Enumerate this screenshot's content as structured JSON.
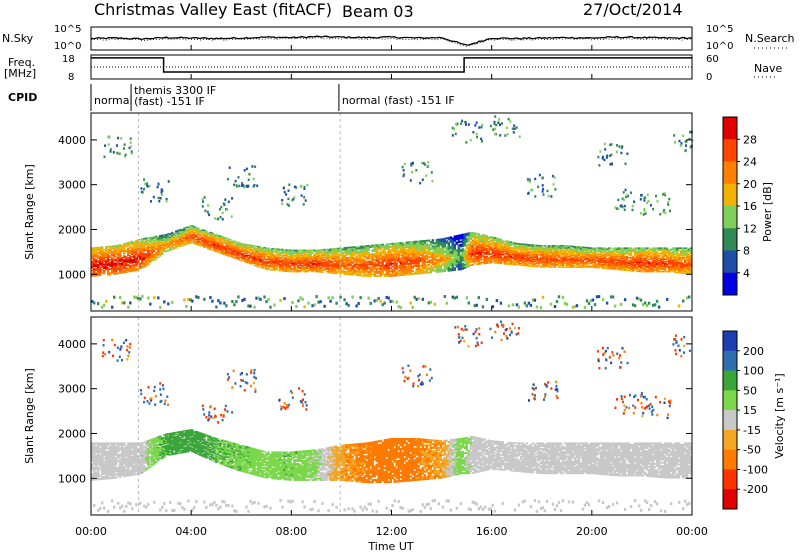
{
  "title": {
    "station": "Christmas Valley East (fitACF)",
    "beam": "Beam 03",
    "date": "27/Oct/2014"
  },
  "noise_panel": {
    "left_label": "N.Sky",
    "right_label": "N.Search",
    "left_ticks": [
      "10^5",
      "10^0"
    ],
    "right_ticks": [
      "10^5",
      "10^0"
    ]
  },
  "freq_panel": {
    "left_label_line1": "Freq.",
    "left_label_line2": "[MHz]",
    "right_label": "Nave",
    "left_ticks": [
      "18",
      "8"
    ],
    "right_ticks": [
      "60",
      "0"
    ]
  },
  "cpid": {
    "label": "CPID",
    "segments": [
      {
        "start_h": 0,
        "end_h": 1.6,
        "text1": "normal",
        "text2": ""
      },
      {
        "start_h": 1.6,
        "end_h": 9.9,
        "text1": "themis 3300 IF",
        "text2": "(fast) -151 IF"
      },
      {
        "start_h": 9.9,
        "end_h": 24,
        "text1": "normal (fast) -151 IF",
        "text2": ""
      }
    ]
  },
  "power_panel": {
    "ylabel": "Slant Range [km]",
    "yticks": [
      "1000",
      "2000",
      "3000",
      "4000"
    ],
    "colorbar_label": "Power [dB]",
    "colorbar_ticks": [
      "4",
      "8",
      "12",
      "16",
      "20",
      "24",
      "28"
    ]
  },
  "velocity_panel": {
    "ylabel": "Slant Range [km]",
    "yticks": [
      "1000",
      "2000",
      "3000",
      "4000"
    ],
    "colorbar_label": "Velocity [m s⁻¹]",
    "colorbar_ticks": [
      "200",
      "100",
      "50",
      "15",
      "-15",
      "-50",
      "-100",
      "-200"
    ]
  },
  "xaxis": {
    "label": "Time UT",
    "ticks": [
      "00:00",
      "04:00",
      "08:00",
      "12:00",
      "16:00",
      "20:00",
      "00:00"
    ]
  },
  "colors": {
    "power_scale": [
      "#0000e0",
      "#1e4fa8",
      "#2f8a55",
      "#7fcf5a",
      "#f2b300",
      "#ff7f00",
      "#ff4500",
      "#e00000"
    ],
    "velocity_scale": [
      "#1b3fb0",
      "#2f6fb0",
      "#3aa63a",
      "#7ad84a",
      "#c8c8c8",
      "#f5a623",
      "#ff7a00",
      "#ff3300",
      "#e00000"
    ]
  },
  "chart_data": [
    {
      "type": "line",
      "title": "",
      "xlabel": "",
      "ylabel": "N.Sky",
      "x_range_hours": [
        0,
        24
      ],
      "series": [
        {
          "name": "N.Sky",
          "values_log10": [
            2.5,
            2.6,
            2.4,
            2.7,
            2.6,
            2.5,
            2.6,
            2.8,
            2.7,
            2.9,
            2.8,
            2.7,
            2.8,
            2.6,
            2.7,
            1.0,
            2.6,
            2.5,
            2.6,
            2.7,
            2.6,
            2.8,
            2.7,
            2.6,
            2.6
          ]
        },
        {
          "name": "N.Search",
          "values_log10": [
            2.2,
            2.3,
            2.2,
            2.4,
            2.3,
            2.2,
            2.3,
            2.5,
            2.4,
            2.6,
            2.5,
            2.4,
            2.5,
            2.3,
            2.4,
            0.8,
            2.3,
            2.2,
            2.3,
            2.4,
            2.3,
            2.5,
            2.4,
            2.3,
            2.3
          ]
        }
      ]
    },
    {
      "type": "line",
      "title": "",
      "xlabel": "",
      "ylabel": "Freq. [MHz]",
      "x_range_hours": [
        0,
        24
      ],
      "series": [
        {
          "name": "Freq.",
          "x": [
            0,
            2.9,
            2.9,
            14.9,
            14.9,
            24
          ],
          "values": [
            16.8,
            16.8,
            10.9,
            10.9,
            16.8,
            16.8
          ]
        },
        {
          "name": "Nave",
          "x": [
            0,
            2.9,
            2.9,
            14.9,
            14.9,
            24
          ],
          "values": [
            30,
            30,
            30,
            30,
            30,
            30
          ]
        }
      ]
    },
    {
      "type": "heatmap",
      "title": "",
      "xlabel": "",
      "ylabel": "Slant Range [km]",
      "quantity": "Power [dB]",
      "x_range_hours": [
        0,
        24
      ],
      "ylim": [
        180,
        4600
      ],
      "clim": [
        0,
        30
      ],
      "main_band": {
        "hours": [
          0,
          1,
          2,
          3,
          4,
          5,
          6,
          7,
          8,
          9,
          10,
          11,
          12,
          13,
          14,
          14.8,
          15.2,
          16,
          17,
          18,
          19,
          20,
          21,
          22,
          23,
          24
        ],
        "lower_km": [
          950,
          1000,
          1100,
          1500,
          1700,
          1500,
          1300,
          1100,
          1050,
          1050,
          1000,
          950,
          950,
          1000,
          1050,
          1100,
          1200,
          1250,
          1200,
          1150,
          1150,
          1150,
          1100,
          1050,
          1050,
          1000
        ],
        "upper_km": [
          1600,
          1650,
          1800,
          1900,
          2100,
          1900,
          1700,
          1600,
          1550,
          1550,
          1600,
          1650,
          1700,
          1750,
          1800,
          1900,
          1950,
          1850,
          1700,
          1650,
          1650,
          1600,
          1600,
          1600,
          1600,
          1600
        ],
        "peak_db": [
          28,
          28,
          27,
          20,
          24,
          26,
          26,
          25,
          25,
          26,
          24,
          24,
          26,
          24,
          20,
          12,
          26,
          26,
          25,
          25,
          24,
          24,
          25,
          26,
          25,
          24
        ]
      }
    },
    {
      "type": "heatmap",
      "title": "",
      "xlabel": "Time UT",
      "ylabel": "Slant Range [km]",
      "quantity": "Velocity [m s⁻¹]",
      "x_range_hours": [
        0,
        24
      ],
      "ylim": [
        180,
        4600
      ],
      "clim": [
        -250,
        250
      ],
      "main_band": {
        "hours": [
          0,
          1,
          2,
          3,
          4,
          5,
          6,
          7,
          8,
          9,
          10,
          11,
          12,
          13,
          14,
          14.8,
          15.2,
          16,
          17,
          18,
          19,
          20,
          21,
          22,
          23,
          24
        ],
        "lower_km": [
          950,
          1000,
          1100,
          1500,
          1600,
          1350,
          1150,
          1000,
          950,
          950,
          950,
          900,
          900,
          950,
          1000,
          1100,
          1100,
          1200,
          1150,
          1100,
          1100,
          1100,
          1050,
          1050,
          1000,
          1000
        ],
        "upper_km": [
          1800,
          1800,
          1800,
          2000,
          2100,
          1900,
          1750,
          1600,
          1600,
          1650,
          1750,
          1800,
          1900,
          1900,
          1850,
          1900,
          1950,
          1850,
          1800,
          1800,
          1800,
          1800,
          1800,
          1800,
          1800,
          1800
        ],
        "velocity_ms": [
          0,
          0,
          0,
          60,
          80,
          50,
          40,
          30,
          40,
          20,
          -40,
          -60,
          -80,
          -60,
          -40,
          40,
          0,
          0,
          0,
          0,
          0,
          0,
          0,
          0,
          0,
          0
        ]
      }
    }
  ]
}
